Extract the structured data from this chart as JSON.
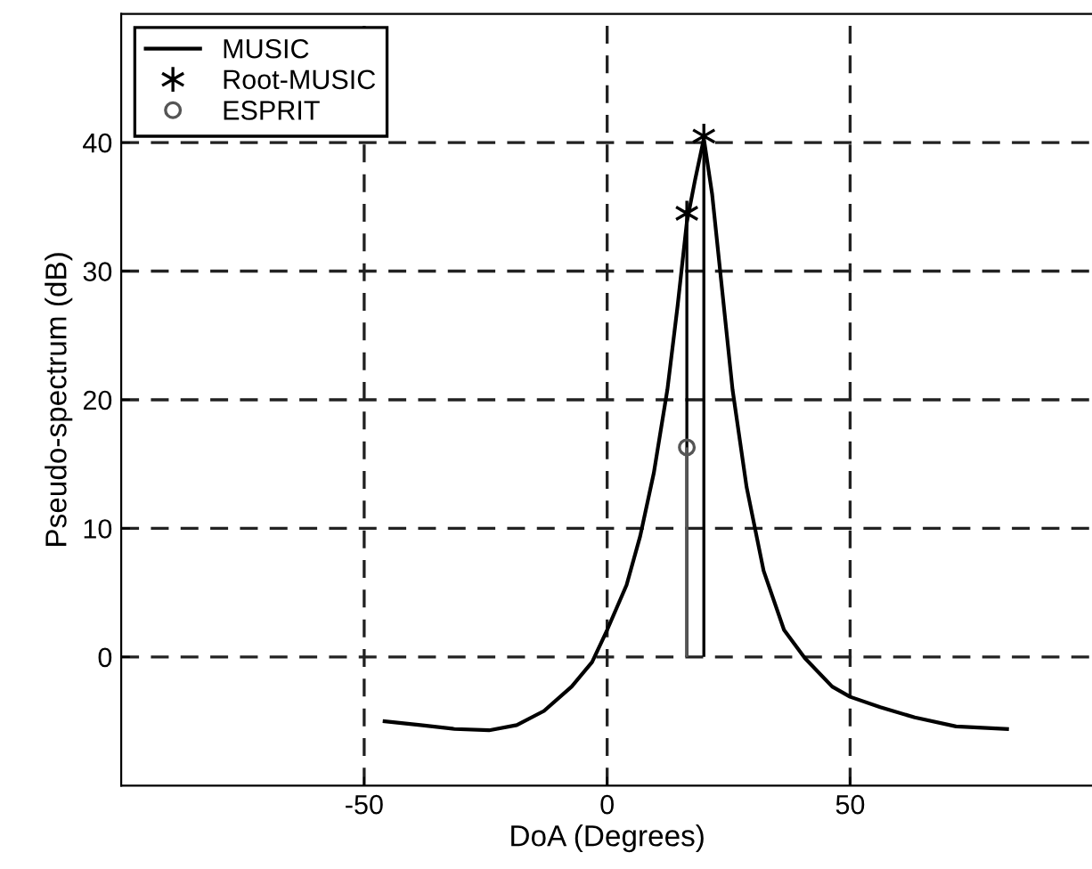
{
  "chart_data": {
    "type": "line",
    "xlabel": "DoA (Degrees)",
    "ylabel": "Pseudo-spectrum (dB)",
    "xlim": [
      -100,
      100
    ],
    "ylim": [
      -10,
      50
    ],
    "xticks": [
      -50,
      0,
      50
    ],
    "yticks": [
      0,
      10,
      20,
      30,
      40
    ],
    "grid": true,
    "legend": "top left",
    "series": [
      {
        "name": "MUSIC",
        "color": "#000000",
        "marker": "none",
        "line_style": "solid",
        "x": [
          -45.8,
          -38.4,
          -31.4,
          -24.3,
          -18.6,
          -13.0,
          -7.3,
          -3.1,
          0,
          4.0,
          6.8,
          9.6,
          12.4,
          14.5,
          16.4,
          18.1,
          19.9,
          21.6,
          23.7,
          25.8,
          28.7,
          32.2,
          36.4,
          40.7,
          46.3,
          50,
          56.2,
          63.3,
          71.8,
          82.3
        ],
        "values": [
          -5.0,
          -5.3,
          -5.6,
          -5.7,
          -5.3,
          -4.2,
          -2.3,
          -0.4,
          2.1,
          5.6,
          9.4,
          14.3,
          20.8,
          27.3,
          33.8,
          37.1,
          40.3,
          36.0,
          28.4,
          20.8,
          13.2,
          6.7,
          2.1,
          -0.1,
          -2.3,
          -3.1,
          -3.9,
          -4.7,
          -5.4,
          -5.6
        ]
      },
      {
        "name": "Root-MUSIC",
        "type": "lollipop",
        "color": "#000000",
        "marker": "cross",
        "x": [
          16.4,
          19.9
        ],
        "values": [
          34.5,
          40.5
        ]
      },
      {
        "name": "ESPRIT",
        "type": "lollipop",
        "color": "#555555",
        "marker": "circle",
        "x": [
          16.4
        ],
        "values": [
          16.3
        ]
      }
    ]
  }
}
